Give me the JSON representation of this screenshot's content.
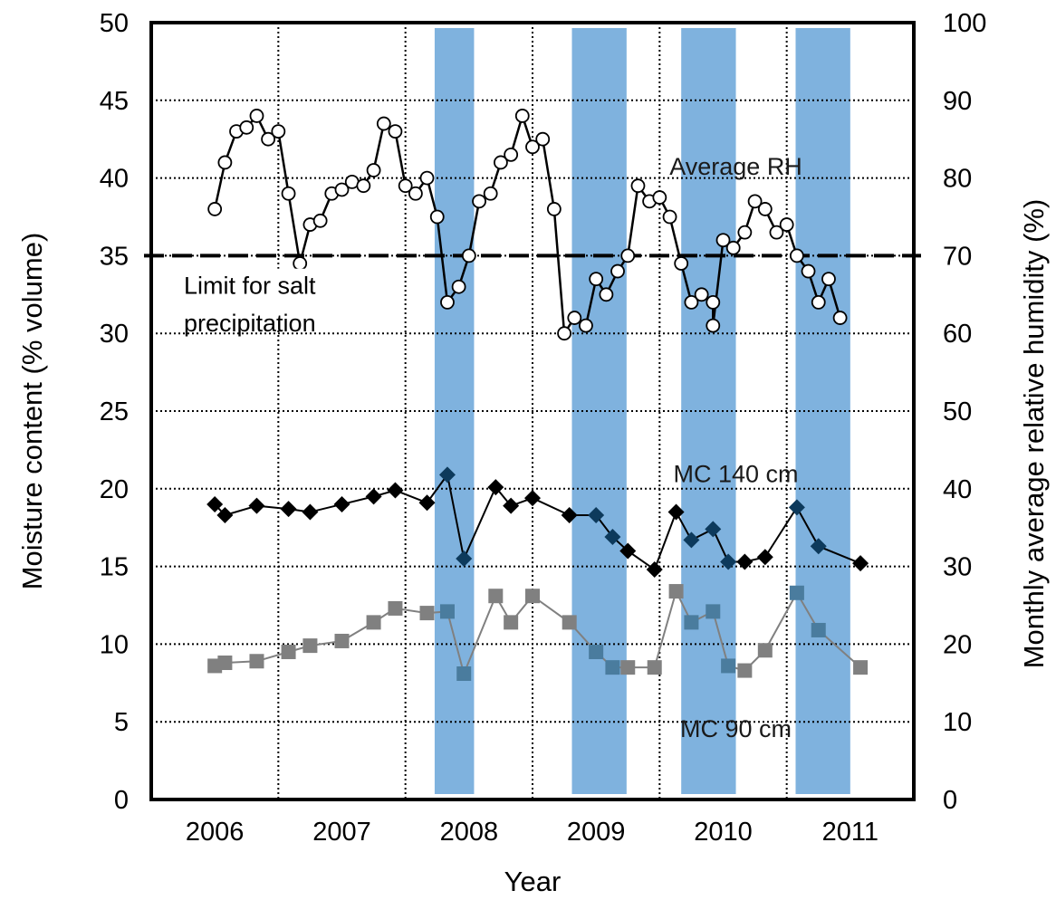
{
  "chart_data": {
    "type": "line",
    "xlabel": "Year",
    "ylabel": "Moisture content (% volume)",
    "y2label": "Monthly average relative humidity (%)",
    "xlim": [
      2005.5,
      2011.5
    ],
    "ylim": [
      0,
      50
    ],
    "y2lim": [
      0,
      100
    ],
    "x_ticks": [
      2006,
      2007,
      2008,
      2009,
      2010,
      2011
    ],
    "y_ticks": [
      0,
      5,
      10,
      15,
      20,
      25,
      30,
      35,
      40,
      45,
      50
    ],
    "y2_ticks": [
      0,
      10,
      20,
      30,
      40,
      50,
      60,
      70,
      80,
      90,
      100
    ],
    "grid": true,
    "v_grid_x": [
      2006.5,
      2007.5,
      2008.5,
      2009.5,
      2010.5
    ],
    "colors": {
      "band": "#7fb2de",
      "rh": "#000000",
      "mc140": "#000000",
      "mc90": "#808080",
      "mc90_band": "#4a7c9e",
      "mc140_band": "#0d3a5c"
    },
    "threshold": {
      "y": 35,
      "label_line1": "Limit for salt",
      "label_line2": "precipitation"
    },
    "bands": [
      {
        "x0": 2007.73,
        "x1": 2008.04
      },
      {
        "x0": 2008.81,
        "x1": 2009.24
      },
      {
        "x0": 2009.67,
        "x1": 2010.1
      },
      {
        "x0": 2010.57,
        "x1": 2011.0
      }
    ],
    "annotations": [
      {
        "text": "Average RH",
        "x": 2010.1,
        "y": 40.8
      },
      {
        "text": "MC 140 cm",
        "x": 2010.1,
        "y": 21.0
      },
      {
        "text": "MC 90 cm",
        "x": 2010.1,
        "y": 4.6
      }
    ],
    "series": [
      {
        "name": "Average RH",
        "axis": "right",
        "marker": "circle",
        "points": [
          [
            2006.0,
            76
          ],
          [
            2006.08,
            82
          ],
          [
            2006.17,
            86
          ],
          [
            2006.25,
            86.5
          ],
          [
            2006.33,
            88
          ],
          [
            2006.42,
            85
          ],
          [
            2006.5,
            86
          ],
          [
            2006.58,
            78
          ],
          [
            2006.67,
            69
          ],
          [
            2006.75,
            74
          ],
          [
            2006.83,
            74.5
          ],
          [
            2006.92,
            78
          ],
          [
            2007.0,
            78.5
          ],
          [
            2007.08,
            79.5
          ],
          [
            2007.17,
            79
          ],
          [
            2007.25,
            81
          ],
          [
            2007.33,
            87
          ],
          [
            2007.42,
            86
          ],
          [
            2007.5,
            79
          ],
          [
            2007.58,
            78
          ],
          [
            2007.67,
            80
          ],
          [
            2007.75,
            75
          ],
          [
            2007.83,
            64
          ],
          [
            2007.92,
            66
          ],
          [
            2008.0,
            70
          ],
          [
            2008.08,
            77
          ],
          [
            2008.17,
            78
          ],
          [
            2008.25,
            82
          ],
          [
            2008.33,
            83
          ],
          [
            2008.42,
            88
          ],
          [
            2008.5,
            84
          ],
          [
            2008.58,
            85
          ],
          [
            2008.67,
            76
          ],
          [
            2008.75,
            60
          ],
          [
            2008.83,
            62
          ],
          [
            2008.92,
            61
          ],
          [
            2009.0,
            67
          ],
          [
            2009.08,
            65
          ],
          [
            2009.17,
            68
          ],
          [
            2009.25,
            70
          ],
          [
            2009.33,
            79
          ],
          [
            2009.42,
            77
          ],
          [
            2009.5,
            77.5
          ],
          [
            2009.58,
            75
          ],
          [
            2009.67,
            69
          ],
          [
            2009.75,
            64
          ],
          [
            2009.83,
            65
          ],
          [
            2009.92,
            64
          ],
          [
            2009.92,
            61
          ],
          [
            2010.0,
            72
          ],
          [
            2010.08,
            71
          ],
          [
            2010.17,
            73
          ],
          [
            2010.25,
            77
          ],
          [
            2010.33,
            76
          ],
          [
            2010.42,
            73
          ],
          [
            2010.5,
            74
          ],
          [
            2010.58,
            70
          ],
          [
            2010.67,
            68
          ],
          [
            2010.75,
            64
          ],
          [
            2010.83,
            67
          ],
          [
            2010.92,
            62
          ]
        ]
      },
      {
        "name": "MC 140 cm",
        "axis": "left",
        "marker": "diamond",
        "points": [
          [
            2006.0,
            19.0
          ],
          [
            2006.08,
            18.3
          ],
          [
            2006.33,
            18.9
          ],
          [
            2006.58,
            18.7
          ],
          [
            2006.75,
            18.5
          ],
          [
            2007.0,
            19.0
          ],
          [
            2007.25,
            19.5
          ],
          [
            2007.42,
            19.9
          ],
          [
            2007.67,
            19.1
          ],
          [
            2007.83,
            20.9
          ],
          [
            2007.96,
            15.5
          ],
          [
            2008.21,
            20.1
          ],
          [
            2008.33,
            18.9
          ],
          [
            2008.5,
            19.4
          ],
          [
            2008.79,
            18.3
          ],
          [
            2009.0,
            18.3
          ],
          [
            2009.13,
            16.9
          ],
          [
            2009.25,
            16.0
          ],
          [
            2009.46,
            14.8
          ],
          [
            2009.63,
            18.5
          ],
          [
            2009.75,
            16.7
          ],
          [
            2009.92,
            17.4
          ],
          [
            2010.04,
            15.3
          ],
          [
            2010.17,
            15.3
          ],
          [
            2010.33,
            15.6
          ],
          [
            2010.58,
            18.8
          ],
          [
            2010.75,
            16.3
          ],
          [
            2011.08,
            15.2
          ]
        ]
      },
      {
        "name": "MC 90 cm",
        "axis": "left",
        "marker": "square",
        "points": [
          [
            2006.0,
            8.6
          ],
          [
            2006.08,
            8.8
          ],
          [
            2006.33,
            8.9
          ],
          [
            2006.58,
            9.5
          ],
          [
            2006.75,
            9.9
          ],
          [
            2007.0,
            10.2
          ],
          [
            2007.25,
            11.4
          ],
          [
            2007.42,
            12.3
          ],
          [
            2007.67,
            12.0
          ],
          [
            2007.83,
            12.1
          ],
          [
            2007.96,
            8.1
          ],
          [
            2008.21,
            13.1
          ],
          [
            2008.33,
            11.4
          ],
          [
            2008.5,
            13.1
          ],
          [
            2008.79,
            11.4
          ],
          [
            2009.0,
            9.5
          ],
          [
            2009.13,
            8.5
          ],
          [
            2009.25,
            8.5
          ],
          [
            2009.46,
            8.5
          ],
          [
            2009.63,
            13.4
          ],
          [
            2009.75,
            11.4
          ],
          [
            2009.92,
            12.1
          ],
          [
            2010.04,
            8.6
          ],
          [
            2010.17,
            8.3
          ],
          [
            2010.33,
            9.6
          ],
          [
            2010.58,
            13.3
          ],
          [
            2010.75,
            10.9
          ],
          [
            2011.08,
            8.5
          ]
        ]
      }
    ]
  }
}
